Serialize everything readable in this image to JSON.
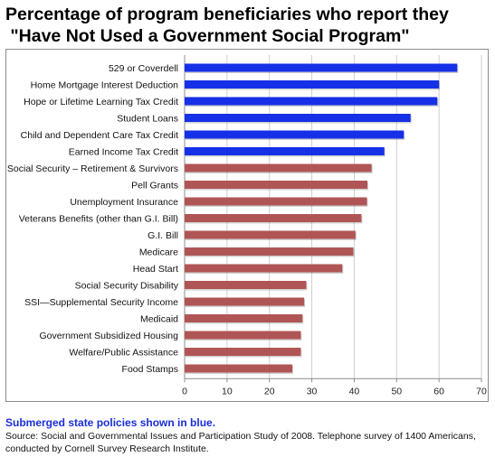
{
  "title_line1": "Percentage of program beneficiaries who report they",
  "title_line2": " \"Have Not Used a Government Social Program\"",
  "note": "Submerged state policies shown in blue.",
  "source": "Source: Social and Governmental Issues and Participation Study of 2008. Telephone survey of 1400 Americans, conducted by Cornell Survey Research Institute.",
  "colors": {
    "submerged": "#1530e6",
    "other": "#b05555",
    "grid": "#cfcfcf"
  },
  "chart_data": {
    "type": "bar",
    "orientation": "horizontal",
    "title": "Percentage of program beneficiaries who report they \"Have Not Used a Government Social Program\"",
    "xlabel": "",
    "ylabel": "",
    "xlim": [
      0,
      70
    ],
    "xticks": [
      0,
      10,
      20,
      30,
      40,
      50,
      60,
      70
    ],
    "grid": true,
    "categories": [
      "529 or Coverdell",
      "Home Mortgage Interest Deduction",
      "Hope or Lifetime Learning Tax Credit",
      "Student Loans",
      "Child and Dependent Care Tax Credit",
      "Earned Income Tax Credit",
      "Social Security – Retirement & Survivors",
      "Pell Grants",
      "Unemployment Insurance",
      "Veterans Benefits (other than G.I. Bill)",
      "G.I. Bill",
      "Medicare",
      "Head Start",
      "Social Security Disability",
      "SSI—Supplemental Security Income",
      "Medicaid",
      "Government Subsidized Housing",
      "Welfare/Public Assistance",
      "Food Stamps"
    ],
    "values": [
      64.3,
      60.0,
      59.6,
      53.3,
      51.7,
      47.1,
      44.1,
      43.1,
      43.0,
      41.7,
      40.3,
      39.8,
      37.2,
      28.7,
      28.2,
      27.8,
      27.4,
      27.4,
      25.4
    ],
    "submerged": [
      true,
      true,
      true,
      true,
      true,
      true,
      false,
      false,
      false,
      false,
      false,
      false,
      false,
      false,
      false,
      false,
      false,
      false,
      false
    ]
  }
}
